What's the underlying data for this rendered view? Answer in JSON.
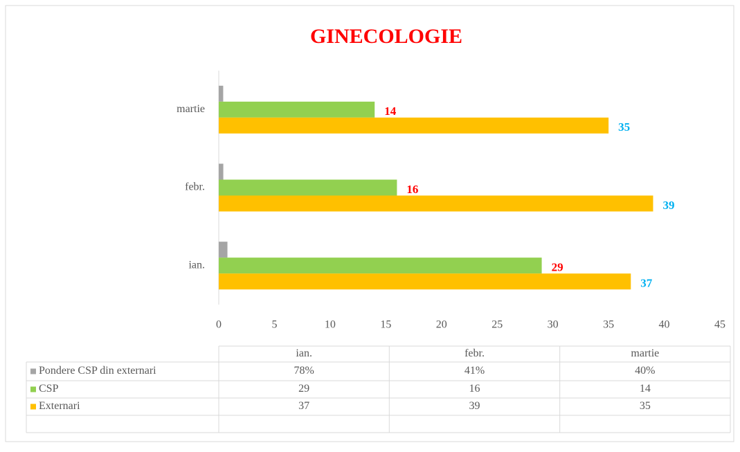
{
  "chart_data": {
    "type": "bar",
    "orientation": "horizontal",
    "title": "GINECOLOGIE",
    "categories": [
      "ian.",
      "febr.",
      "martie"
    ],
    "series": [
      {
        "name": "Pondere CSP din externari",
        "color": "#a5a5a5",
        "values": [
          0.78,
          0.41,
          0.4
        ],
        "value_labels": [
          "78%",
          "41%",
          "40%"
        ]
      },
      {
        "name": "CSP",
        "color": "#92d050",
        "values": [
          29,
          16,
          14
        ],
        "label_color": "#ff0000"
      },
      {
        "name": "Externari",
        "color": "#ffc000",
        "values": [
          37,
          39,
          35
        ],
        "label_color": "#00b0f0"
      }
    ],
    "xlim": [
      0,
      45
    ],
    "xticks": [
      0,
      5,
      10,
      15,
      20,
      25,
      30,
      35,
      40,
      45
    ],
    "data_table": true
  }
}
